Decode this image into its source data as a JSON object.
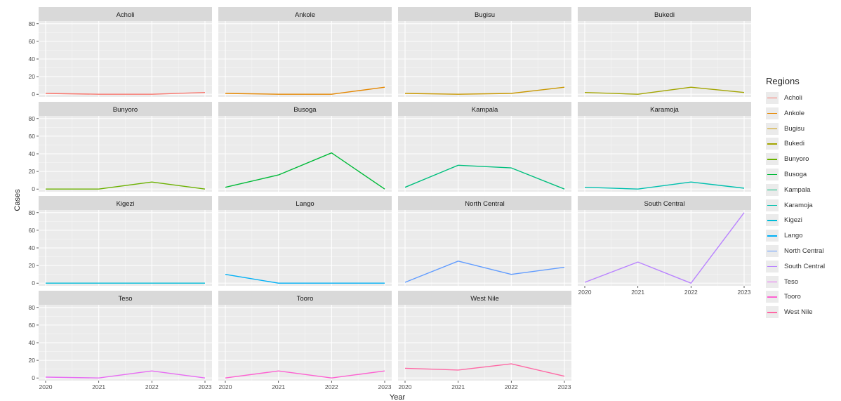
{
  "chart_data": {
    "type": "line",
    "xlabel": "Year",
    "ylabel": "Cases",
    "x": [
      2020,
      2021,
      2022,
      2023
    ],
    "x_tick_labels": [
      "2020",
      "2021",
      "2022",
      "2023"
    ],
    "ylim": [
      -3,
      83
    ],
    "y_ticks": [
      0,
      20,
      40,
      60,
      80
    ],
    "y_tick_labels": [
      "0",
      "20",
      "40",
      "60",
      "80"
    ],
    "facet_layout": "4 columns, 4 rows, shared axes (facet_wrap)",
    "grid": true,
    "legend": {
      "title": "Regions",
      "position": "right"
    },
    "series": [
      {
        "name": "Acholi",
        "color": "#f8766d",
        "values": [
          1,
          0,
          0,
          2
        ]
      },
      {
        "name": "Ankole",
        "color": "#e58700",
        "values": [
          1,
          0,
          0,
          8
        ]
      },
      {
        "name": "Bugisu",
        "color": "#c99800",
        "values": [
          1,
          0,
          1,
          8
        ]
      },
      {
        "name": "Bukedi",
        "color": "#a3a500",
        "values": [
          2,
          0,
          8,
          2
        ]
      },
      {
        "name": "Bunyoro",
        "color": "#6bb100",
        "values": [
          0,
          0,
          8,
          0
        ]
      },
      {
        "name": "Busoga",
        "color": "#00ba38",
        "values": [
          2,
          16,
          41,
          0
        ]
      },
      {
        "name": "Kampala",
        "color": "#00bf7d",
        "values": [
          2,
          27,
          24,
          0
        ]
      },
      {
        "name": "Karamoja",
        "color": "#00c0af",
        "values": [
          2,
          0,
          8,
          1
        ]
      },
      {
        "name": "Kigezi",
        "color": "#00bcd8",
        "values": [
          0,
          0,
          0,
          0
        ]
      },
      {
        "name": "Lango",
        "color": "#00b0f6",
        "values": [
          10,
          0,
          0,
          0
        ]
      },
      {
        "name": "North Central",
        "color": "#619cff",
        "values": [
          1,
          25,
          10,
          18
        ]
      },
      {
        "name": "South Central",
        "color": "#b983ff",
        "values": [
          1,
          24,
          0,
          80
        ]
      },
      {
        "name": "Teso",
        "color": "#e76bf3",
        "values": [
          1,
          0,
          8,
          0
        ]
      },
      {
        "name": "Tooro",
        "color": "#fd61d1",
        "values": [
          0,
          8,
          0,
          8
        ]
      },
      {
        "name": "West Nile",
        "color": "#ff67a4",
        "values": [
          11,
          9,
          16,
          2
        ]
      }
    ]
  }
}
